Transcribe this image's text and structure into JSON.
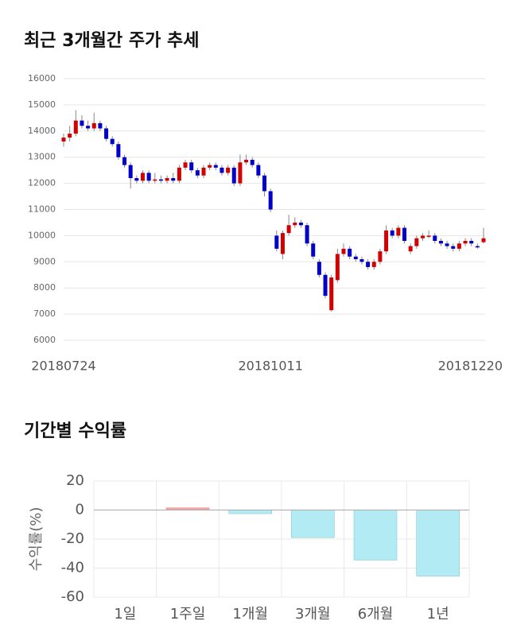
{
  "chart_data": [
    {
      "type": "candlestick",
      "title": "최근 3개월간 주가 추세",
      "up_color": "#d40000",
      "down_color": "#0000c8",
      "grid": true,
      "ylim": [
        6000,
        16000
      ],
      "yticks": [
        6000,
        7000,
        8000,
        9000,
        10000,
        11000,
        12000,
        13000,
        14000,
        15000,
        16000
      ],
      "categories": [
        "20180724",
        null,
        null,
        null,
        null,
        null,
        null,
        null,
        null,
        null,
        null,
        null,
        null,
        null,
        null,
        null,
        null,
        null,
        null,
        null,
        null,
        null,
        null,
        null,
        null,
        null,
        null,
        null,
        null,
        null,
        null,
        null,
        null,
        null,
        "20181011",
        null,
        null,
        null,
        null,
        null,
        null,
        null,
        null,
        null,
        null,
        null,
        null,
        null,
        null,
        null,
        null,
        null,
        null,
        null,
        null,
        null,
        null,
        null,
        null,
        null,
        null,
        null,
        null,
        null,
        null,
        null,
        null,
        null,
        null,
        "20181220"
      ],
      "ohlc": [
        [
          13600,
          13900,
          13400,
          13750
        ],
        [
          13750,
          14200,
          13600,
          13900
        ],
        [
          13900,
          14800,
          13800,
          14400
        ],
        [
          14400,
          14600,
          14100,
          14200
        ],
        [
          14200,
          14400,
          14000,
          14100
        ],
        [
          14100,
          14700,
          14000,
          14300
        ],
        [
          14300,
          14400,
          14000,
          14100
        ],
        [
          14100,
          14200,
          13600,
          13700
        ],
        [
          13700,
          13800,
          13400,
          13500
        ],
        [
          13500,
          13600,
          12900,
          13000
        ],
        [
          13000,
          13100,
          12600,
          12700
        ],
        [
          12700,
          12800,
          11800,
          12200
        ],
        [
          12200,
          12300,
          12000,
          12100
        ],
        [
          12100,
          12500,
          12000,
          12400
        ],
        [
          12400,
          12500,
          12000,
          12100
        ],
        [
          12100,
          12400,
          12000,
          12150
        ],
        [
          12150,
          12300,
          12000,
          12100
        ],
        [
          12100,
          12300,
          12000,
          12200
        ],
        [
          12200,
          12400,
          12000,
          12100
        ],
        [
          12100,
          12700,
          12000,
          12600
        ],
        [
          12600,
          12900,
          12500,
          12800
        ],
        [
          12800,
          12900,
          12400,
          12500
        ],
        [
          12500,
          12600,
          12200,
          12300
        ],
        [
          12300,
          12700,
          12200,
          12600
        ],
        [
          12600,
          12800,
          12500,
          12700
        ],
        [
          12700,
          12800,
          12500,
          12600
        ],
        [
          12600,
          12700,
          12300,
          12400
        ],
        [
          12400,
          12700,
          12300,
          12600
        ],
        [
          12600,
          12700,
          11900,
          12000
        ],
        [
          12000,
          13100,
          11900,
          12800
        ],
        [
          12800,
          13100,
          12700,
          12900
        ],
        [
          12900,
          13000,
          12600,
          12700
        ],
        [
          12700,
          12800,
          12200,
          12300
        ],
        [
          12300,
          12400,
          11500,
          11700
        ],
        [
          11700,
          11800,
          10900,
          11000
        ],
        [
          10000,
          10200,
          9400,
          9500
        ],
        [
          9300,
          10200,
          9100,
          10100
        ],
        [
          10100,
          10800,
          10000,
          10400
        ],
        [
          10400,
          10700,
          10300,
          10500
        ],
        [
          10500,
          10600,
          10300,
          10400
        ],
        [
          10400,
          10500,
          9600,
          9700
        ],
        [
          9700,
          9800,
          9100,
          9200
        ],
        [
          9000,
          9100,
          8400,
          8500
        ],
        [
          8500,
          8600,
          7600,
          7700
        ],
        [
          7150,
          8500,
          7100,
          8400
        ],
        [
          8300,
          9500,
          8200,
          9300
        ],
        [
          9300,
          9700,
          9200,
          9500
        ],
        [
          9500,
          9600,
          9100,
          9200
        ],
        [
          9200,
          9300,
          9000,
          9100
        ],
        [
          9100,
          9200,
          8900,
          9000
        ],
        [
          9000,
          9100,
          8700,
          8800
        ],
        [
          8800,
          9100,
          8700,
          9000
        ],
        [
          9000,
          9500,
          8900,
          9400
        ],
        [
          9400,
          10400,
          9300,
          10200
        ],
        [
          10200,
          10300,
          9900,
          10000
        ],
        [
          10000,
          10400,
          9900,
          10300
        ],
        [
          10300,
          10400,
          9700,
          9800
        ],
        [
          9400,
          9700,
          9300,
          9600
        ],
        [
          9600,
          10000,
          9500,
          9900
        ],
        [
          9900,
          10100,
          9800,
          10000
        ],
        [
          10000,
          10200,
          9900,
          10000
        ],
        [
          10000,
          10100,
          9700,
          9800
        ],
        [
          9800,
          9900,
          9600,
          9700
        ],
        [
          9700,
          9800,
          9500,
          9600
        ],
        [
          9600,
          9700,
          9400,
          9500
        ],
        [
          9500,
          9800,
          9400,
          9700
        ],
        [
          9700,
          9900,
          9600,
          9800
        ],
        [
          9800,
          9900,
          9600,
          9700
        ],
        [
          9600,
          9700,
          9500,
          9550
        ],
        [
          9750,
          10300,
          9700,
          9900
        ]
      ]
    },
    {
      "type": "bar",
      "title": "기간별 수익률",
      "ylabel": "수익률(%)",
      "positive_color": "#f4a5a5",
      "negative_color": "#b2ebf4",
      "grid": true,
      "ylim": [
        -60,
        20
      ],
      "yticks": [
        -60,
        -40,
        -20,
        0,
        20
      ],
      "categories": [
        "1일",
        "1주일",
        "1개월",
        "3개월",
        "6개월",
        "1년"
      ],
      "values": [
        0,
        1.5,
        -2.5,
        -19,
        -34.5,
        -45.5
      ]
    }
  ]
}
